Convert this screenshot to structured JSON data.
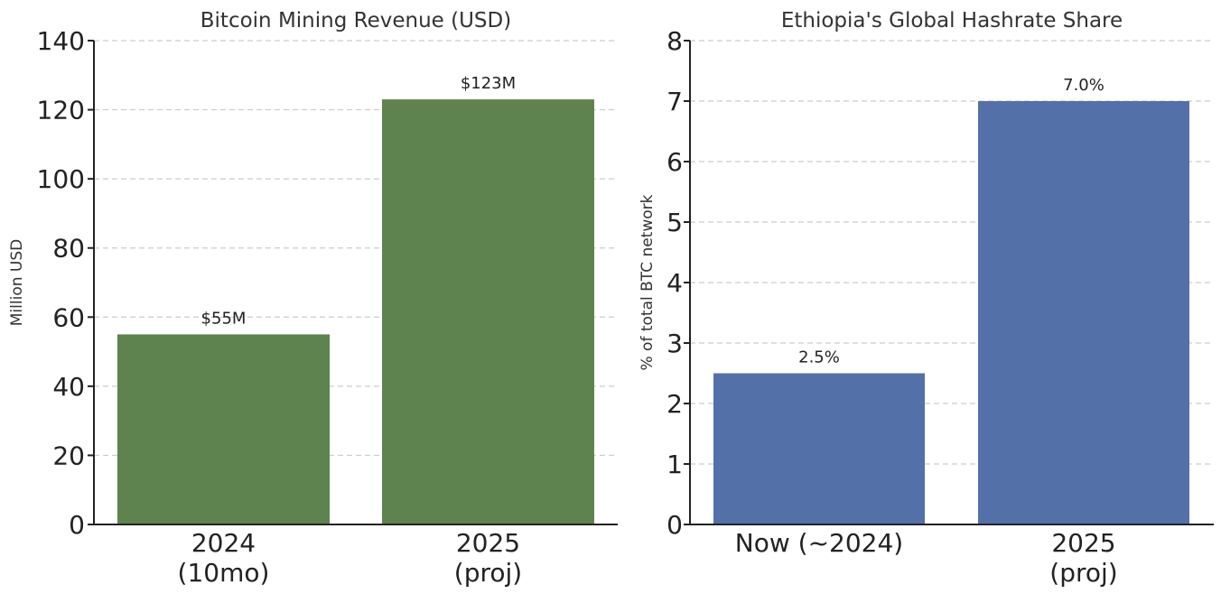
{
  "chart_data": [
    {
      "type": "bar",
      "title": "Bitcoin Mining Revenue (USD)",
      "xlabel": "",
      "ylabel": "Million USD",
      "categories": [
        [
          "2024",
          "(10mo)"
        ],
        [
          "2025",
          "(proj)"
        ]
      ],
      "values": [
        55,
        123
      ],
      "value_labels": [
        "$55M",
        "$123M"
      ],
      "ylim": [
        0,
        140
      ],
      "yticks": [
        0,
        20,
        40,
        60,
        80,
        100,
        120,
        140
      ],
      "grid": true,
      "color": "#5e834f"
    },
    {
      "type": "bar",
      "title": "Ethiopia's Global Hashrate Share",
      "xlabel": "",
      "ylabel": "% of total BTC network",
      "categories": [
        [
          "Now (~2024)"
        ],
        [
          "2025",
          "(proj)"
        ]
      ],
      "values": [
        2.5,
        7.0
      ],
      "value_labels": [
        "2.5%",
        "7.0%"
      ],
      "ylim": [
        0,
        8
      ],
      "yticks": [
        0,
        1,
        2,
        3,
        4,
        5,
        6,
        7,
        8
      ],
      "grid": true,
      "color": "#5470a9"
    }
  ]
}
